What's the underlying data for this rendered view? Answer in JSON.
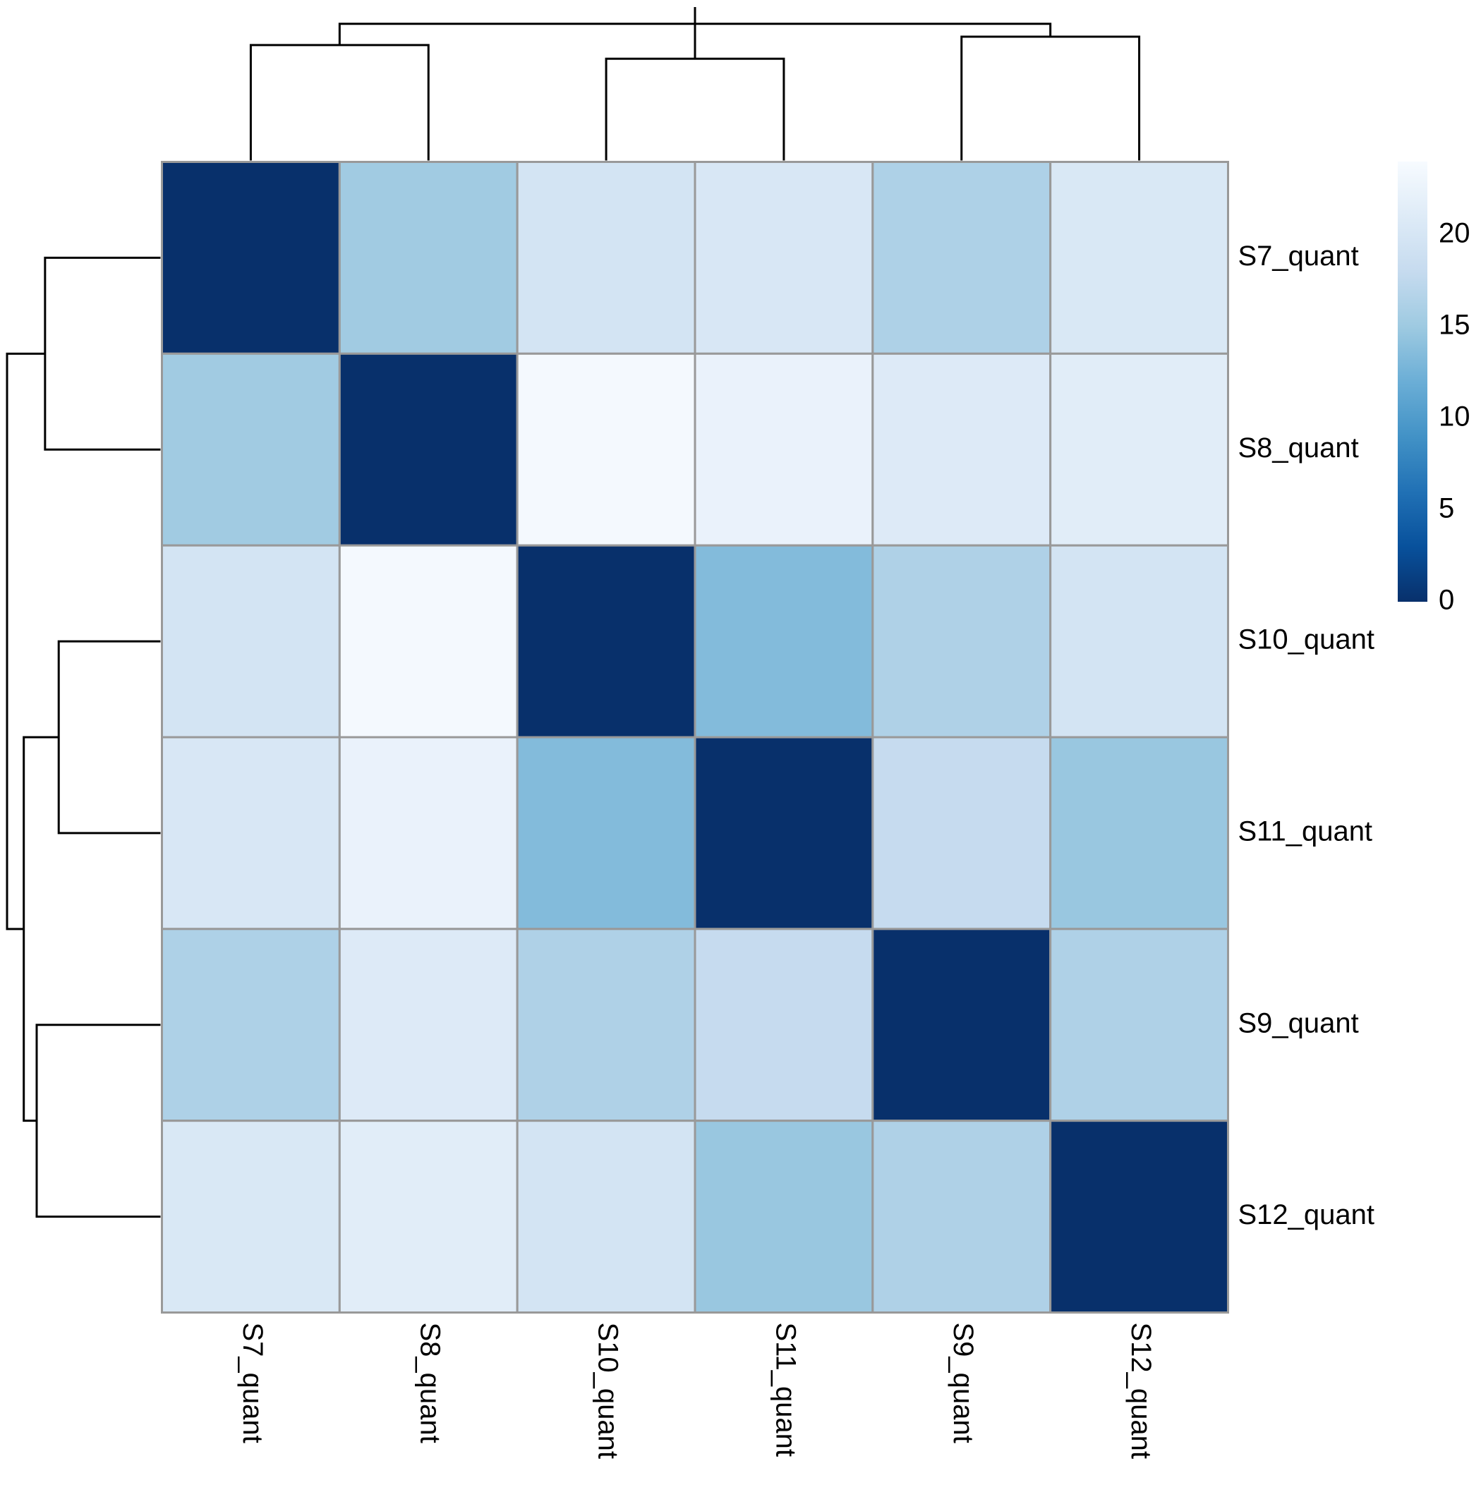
{
  "chart_data": {
    "type": "heatmap",
    "title": "",
    "xlabel": "",
    "ylabel": "",
    "row_labels": [
      "S7_quant",
      "S8_quant",
      "S10_quant",
      "S11_quant",
      "S9_quant",
      "S12_quant"
    ],
    "col_labels": [
      "S7_quant",
      "S8_quant",
      "S10_quant",
      "S11_quant",
      "S9_quant",
      "S12_quant"
    ],
    "values": [
      [
        0,
        15.2,
        19.6,
        20.2,
        16.2,
        20.4
      ],
      [
        15.2,
        0,
        23.6,
        22.4,
        20.9,
        21.3
      ],
      [
        19.6,
        23.6,
        0,
        13.4,
        16.3,
        19.6
      ],
      [
        20.2,
        22.4,
        13.4,
        0,
        18.0,
        14.7
      ],
      [
        16.2,
        20.9,
        16.3,
        18.0,
        0,
        16.3
      ],
      [
        20.4,
        21.3,
        19.6,
        14.7,
        16.3,
        0
      ]
    ],
    "color_scale": {
      "min": 0,
      "max": 24,
      "ticks": [
        "0",
        "5",
        "10",
        "15",
        "20"
      ],
      "tick_values": [
        0,
        5,
        10,
        15,
        20
      ],
      "colors": [
        "#08306b",
        "#08519c",
        "#2171b5",
        "#4292c6",
        "#6baed6",
        "#9ecae1",
        "#c6dbef",
        "#deebf7",
        "#f7fbff"
      ]
    },
    "col_dendrogram": [
      {
        "a": 0,
        "b": 1,
        "h": 15.2
      },
      {
        "a": 4,
        "b": 5,
        "h": 16.3
      },
      {
        "a": 2,
        "b": 3,
        "h": 13.4
      },
      {
        "a": 6,
        "b": 7,
        "h": 18.0
      },
      {
        "a": 8,
        "b": 9,
        "h": 20.2
      }
    ],
    "row_dendrogram": [
      {
        "a": 0,
        "b": 1,
        "h": 15.2
      },
      {
        "a": 2,
        "b": 3,
        "h": 13.4
      },
      {
        "a": 4,
        "b": 5,
        "h": 16.3
      },
      {
        "a": 7,
        "b": 8,
        "h": 18.0
      },
      {
        "a": 6,
        "b": 9,
        "h": 20.2
      }
    ],
    "grid": true,
    "legend_position": "right"
  }
}
